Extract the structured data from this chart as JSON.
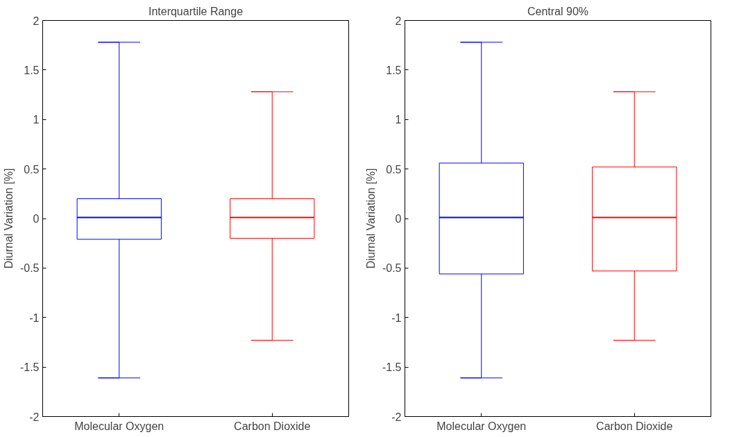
{
  "chart_data": [
    {
      "type": "box",
      "title": "Interquartile Range",
      "ylabel": "Diurnal Variation [%]",
      "categories": [
        "Molecular Oxygen",
        "Carbon Dioxide"
      ],
      "colors": [
        "#0000ff",
        "#ff0000"
      ],
      "boxes": [
        {
          "low": -1.61,
          "q1": -0.21,
          "median": 0.01,
          "q3": 0.2,
          "high": 1.78
        },
        {
          "low": -1.23,
          "q1": -0.2,
          "median": 0.01,
          "q3": 0.2,
          "high": 1.28
        }
      ],
      "ylim": [
        -2,
        2
      ],
      "yticks": [
        -2,
        -1.5,
        -1,
        -0.5,
        0,
        0.5,
        1,
        1.5,
        2
      ],
      "grid": false
    },
    {
      "type": "box",
      "title": "Central 90%",
      "ylabel": "Diurnal Variation [%]",
      "categories": [
        "Molecular Oxygen",
        "Carbon Dioxide"
      ],
      "colors": [
        "#0000ff",
        "#ff0000"
      ],
      "boxes": [
        {
          "low": -1.61,
          "q1": -0.56,
          "median": 0.01,
          "q3": 0.56,
          "high": 1.78
        },
        {
          "low": -1.23,
          "q1": -0.53,
          "median": 0.01,
          "q3": 0.52,
          "high": 1.28
        }
      ],
      "ylim": [
        -2,
        2
      ],
      "yticks": [
        -2,
        -1.5,
        -1,
        -0.5,
        0,
        0.5,
        1,
        1.5,
        2
      ],
      "grid": false
    }
  ]
}
